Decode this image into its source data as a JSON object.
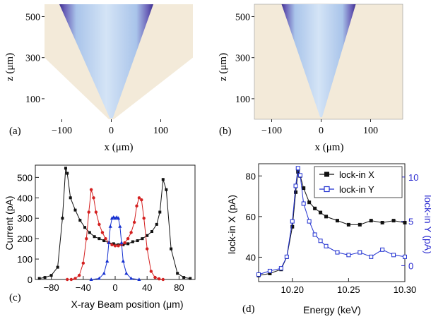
{
  "chart_data": [
    {
      "panel": "(a)",
      "type": "heatmap",
      "xlabel": "x (μm)",
      "ylabel": "z (μm)",
      "xticks": [
        -100,
        0,
        100
      ],
      "yticks": [
        100,
        300,
        500
      ],
      "xlim": [
        -135,
        165
      ],
      "ylim": [
        0,
        560
      ],
      "colors": {
        "background": "#f3ead9",
        "beam": "#aecbeb",
        "edge": "#3d2f8f"
      }
    },
    {
      "panel": "(b)",
      "type": "heatmap",
      "xlabel": "x (μm)",
      "ylabel": "z (μm)",
      "xticks": [
        -100,
        0,
        100
      ],
      "yticks": [
        100,
        300,
        500
      ],
      "xlim": [
        -135,
        165
      ],
      "ylim": [
        0,
        560
      ],
      "colors": {
        "background": "#f3ead9",
        "beam": "#aecbeb",
        "edge": "#3d2f8f"
      }
    },
    {
      "panel": "(c)",
      "type": "scatter",
      "xlabel": "X-ray Beam position (μm)",
      "ylabel": "Current (pA)",
      "xlim": [
        -100,
        100
      ],
      "ylim": [
        0,
        560
      ],
      "xticks": [
        -80,
        -40,
        0,
        40,
        80
      ],
      "yticks": [
        0,
        100,
        200,
        300,
        400,
        500
      ],
      "series": [
        {
          "color": "#111111",
          "marker": "square",
          "x": [
            -95,
            -88,
            -80,
            -72,
            -66,
            -62,
            -60,
            -56,
            -50,
            -44,
            -38,
            -32,
            -26,
            -20,
            -14,
            -8,
            -2,
            4,
            10,
            16,
            22,
            28,
            34,
            40,
            46,
            52,
            56,
            60,
            64,
            70,
            78,
            86,
            94
          ],
          "y": [
            5,
            10,
            20,
            60,
            300,
            545,
            520,
            400,
            340,
            290,
            255,
            230,
            210,
            200,
            190,
            180,
            175,
            170,
            170,
            175,
            185,
            190,
            200,
            215,
            235,
            270,
            330,
            490,
            440,
            150,
            30,
            10,
            5
          ]
        },
        {
          "color": "#d42020",
          "marker": "circle",
          "x": [
            -60,
            -55,
            -50,
            -45,
            -40,
            -36,
            -33,
            -30,
            -27,
            -24,
            -20,
            -16,
            -12,
            -8,
            -4,
            0,
            4,
            8,
            12,
            16,
            20,
            24,
            27,
            30,
            33,
            36,
            40,
            45,
            50,
            55,
            60
          ],
          "y": [
            0,
            0,
            5,
            20,
            80,
            200,
            330,
            440,
            400,
            330,
            270,
            230,
            200,
            180,
            170,
            165,
            165,
            170,
            180,
            200,
            230,
            280,
            360,
            400,
            390,
            300,
            150,
            40,
            10,
            3,
            0
          ],
          "markers_at": [
            -30,
            -28,
            -26,
            -24,
            -22,
            -20,
            -18,
            -15,
            -12,
            -9,
            -6,
            -3,
            0,
            3,
            6,
            9,
            12,
            15,
            18,
            20,
            22,
            24,
            26,
            28,
            30,
            -32,
            -34,
            -36,
            -38,
            -40,
            -42,
            -45,
            -48,
            -52,
            -56,
            32,
            34,
            36,
            38,
            40,
            42,
            45,
            48,
            52,
            56
          ]
        },
        {
          "color": "#1530d0",
          "marker": "triangle",
          "x": [
            -30,
            -20,
            -14,
            -10,
            -8,
            -6,
            -4,
            -2,
            0,
            2,
            4,
            6,
            8,
            10,
            14,
            20,
            30
          ],
          "y": [
            0,
            5,
            30,
            90,
            180,
            260,
            300,
            305,
            300,
            305,
            300,
            260,
            180,
            90,
            30,
            5,
            0
          ]
        }
      ]
    },
    {
      "panel": "(d)",
      "type": "line",
      "xlabel": "Energy (keV)",
      "ylabel": "lock-in X (pA)",
      "y2label": "lock-in Y (pA)",
      "xlim": [
        10.17,
        10.3
      ],
      "ylim": [
        28,
        86
      ],
      "y2lim": [
        -1.8,
        11.5
      ],
      "xticks": [
        10.2,
        10.25,
        10.3
      ],
      "yticks": [
        40,
        60,
        80
      ],
      "y2ticks": [
        0,
        5,
        10
      ],
      "legend": "top-right",
      "series": [
        {
          "name": "lock-in X",
          "color": "#111111",
          "marker": "filled-square",
          "axis": "left",
          "x": [
            10.17,
            10.18,
            10.19,
            10.195,
            10.2,
            10.203,
            10.205,
            10.207,
            10.21,
            10.215,
            10.22,
            10.225,
            10.23,
            10.24,
            10.25,
            10.26,
            10.27,
            10.28,
            10.29,
            10.3
          ],
          "y": [
            31,
            32,
            34,
            40,
            55,
            72,
            82,
            80,
            74,
            67,
            64,
            62,
            60,
            58,
            56,
            56,
            58,
            57,
            58,
            57
          ]
        },
        {
          "name": "lock-in Y",
          "color": "#1f2fd0",
          "marker": "open-square",
          "axis": "right",
          "x": [
            10.17,
            10.18,
            10.19,
            10.195,
            10.2,
            10.203,
            10.205,
            10.207,
            10.21,
            10.215,
            10.22,
            10.225,
            10.23,
            10.24,
            10.25,
            10.26,
            10.27,
            10.28,
            10.29,
            10.3
          ],
          "y": [
            -1,
            -0.6,
            -0.3,
            1,
            5,
            9,
            11,
            10.2,
            7,
            5,
            3.5,
            2.8,
            2.2,
            1.5,
            1.2,
            1.5,
            1,
            1.8,
            1.2,
            1
          ]
        }
      ]
    }
  ],
  "labels": {
    "a": "(a)",
    "b": "(b)",
    "c": "(c)",
    "d": "(d)"
  }
}
